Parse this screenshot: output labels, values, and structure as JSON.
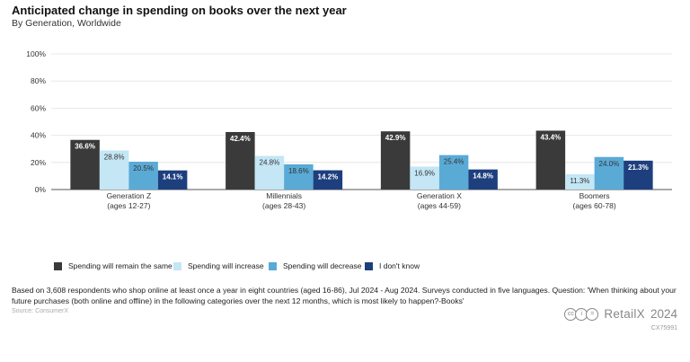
{
  "header": {
    "title": "Anticipated change in spending on books over the next year",
    "subtitle": "By Generation, Worldwide"
  },
  "chart_data": {
    "type": "bar",
    "title": "Anticipated change in spending on books over the next year",
    "subtitle": "By Generation, Worldwide",
    "categories": [
      "Generation Z",
      "Millennials",
      "Generation X",
      "Boomers"
    ],
    "category_sublabels": [
      "(ages 12-27)",
      "(ages 28-43)",
      "(ages 44-59)",
      "(ages 60-78)"
    ],
    "series": [
      {
        "name": "Spending will remain the same",
        "values": [
          36.6,
          42.4,
          42.9,
          43.4
        ],
        "color": "#3a3a3a",
        "label_color": "#ffffff"
      },
      {
        "name": "Spending will increase",
        "values": [
          28.8,
          24.8,
          16.9,
          11.3
        ],
        "color": "#c4e6f5",
        "label_color": "#333333"
      },
      {
        "name": "Spending will decrease",
        "values": [
          20.5,
          18.6,
          25.4,
          24.0
        ],
        "color": "#5aaad6",
        "label_color": "#333333"
      },
      {
        "name": "I don't know",
        "values": [
          14.1,
          14.2,
          14.8,
          21.3
        ],
        "color": "#1e3f7e",
        "label_color": "#ffffff"
      }
    ],
    "yticks": [
      "0%",
      "20%",
      "40%",
      "60%",
      "80%",
      "100%"
    ],
    "ylim": [
      0,
      100
    ],
    "grid": true,
    "legend_position": "bottom"
  },
  "footer": {
    "note": "Based on 3,608 respondents who shop online at least once a year in eight countries (aged 16-86), Jul 2024 - Aug 2024. Surveys conducted in five languages. Question: 'When thinking about your future purchases (both online and offline) in the following categories over the next 12 months, which is most likely to happen?-Books'",
    "source": "Source: ConsumerX",
    "brand": "RetailX",
    "year": "2024",
    "code": "CX75991",
    "cc_icons": [
      "cc",
      "i",
      "="
    ]
  }
}
